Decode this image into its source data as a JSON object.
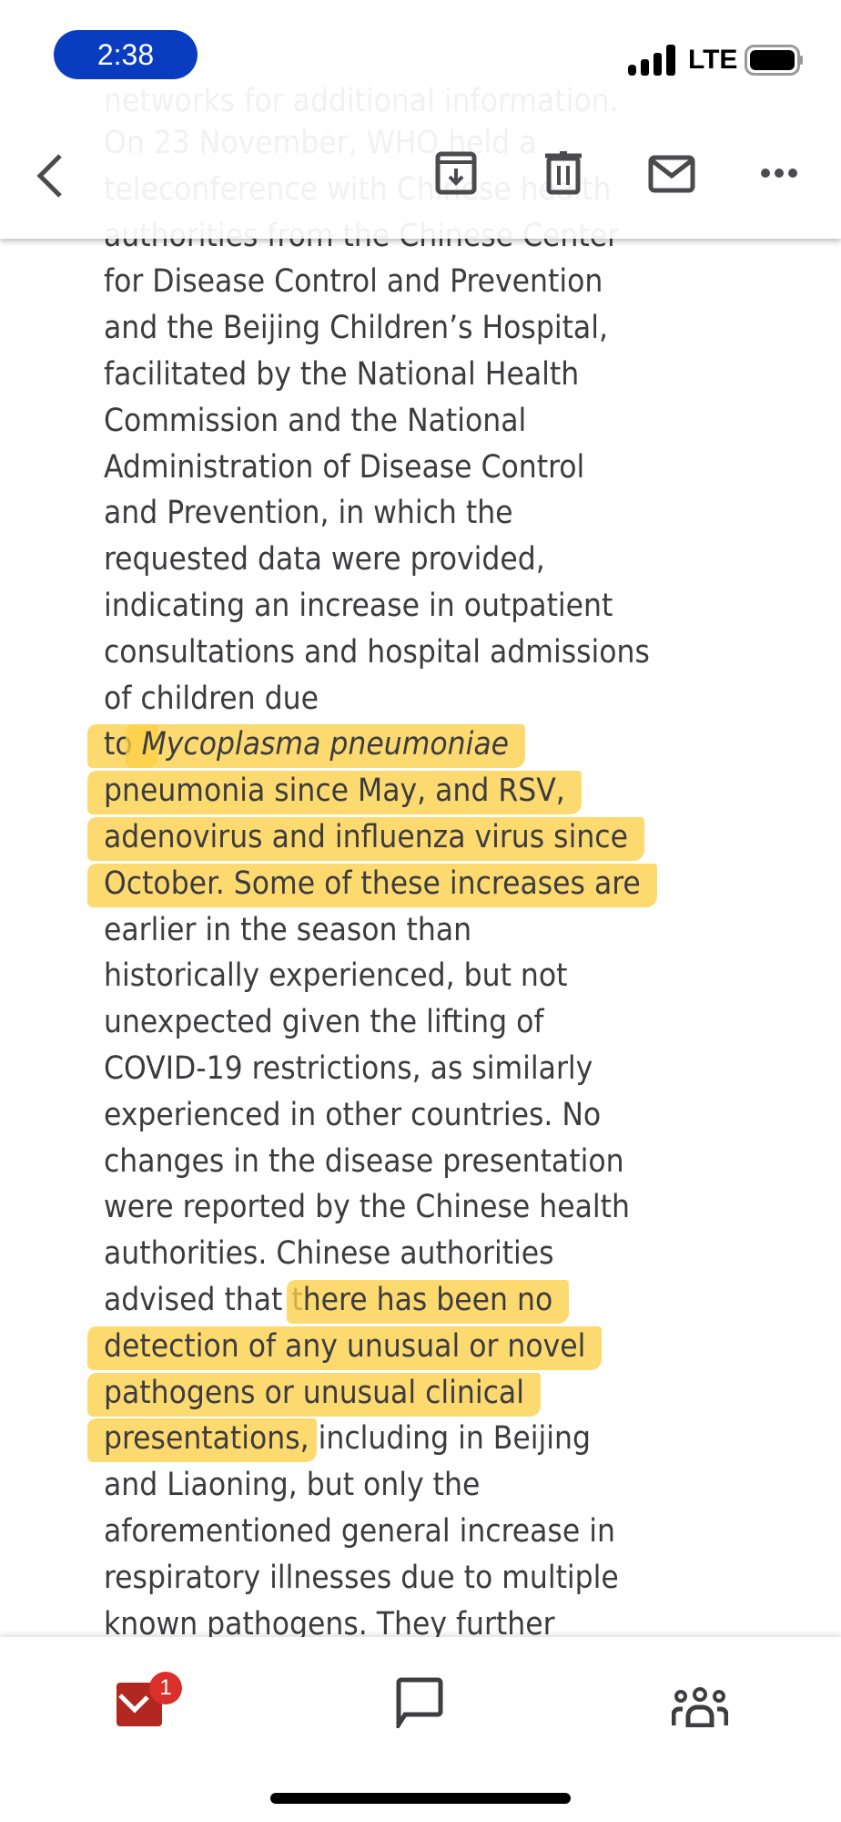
{
  "status_bar": {
    "time": "2:38",
    "network": "LTE",
    "battery_level": 0.9
  },
  "toolbar": {
    "icons": [
      "back-chevron-icon",
      "archive-icon",
      "trash-icon",
      "mail-icon",
      "more-icon"
    ]
  },
  "article": {
    "paragraphs": [
      [
        [
          {
            "t": "networks for additional information."
          }
        ]
      ],
      [
        [
          {
            "t": "On 23 November, WHO held a"
          }
        ],
        [
          {
            "t": "teleconference with Chinese health"
          }
        ],
        [
          {
            "t": "authorities from the Chinese Center"
          }
        ],
        [
          {
            "t": "for Disease Control and Prevention"
          }
        ],
        [
          {
            "t": "and the Beijing Children’s Hospital,"
          }
        ],
        [
          {
            "t": "facilitated by the National Health"
          }
        ],
        [
          {
            "t": "Commission and the National"
          }
        ],
        [
          {
            "t": "Administration of Disease Control"
          }
        ],
        [
          {
            "t": "and Prevention, in which the"
          }
        ],
        [
          {
            "t": "requested data were provided,"
          }
        ],
        [
          {
            "t": "indicating an increase in outpatient"
          }
        ],
        [
          {
            "t": "consultations and hospital admissions"
          }
        ],
        [
          {
            "t": "of children due"
          }
        ],
        [
          {
            "t": "to ",
            "hl": true
          },
          {
            "t": "Mycoplasma pneumoniae",
            "hl": true,
            "i": true
          }
        ],
        [
          {
            "t": "pneumonia since May, and RSV,",
            "hl": true
          }
        ],
        [
          {
            "t": "adenovirus and influenza virus since",
            "hl": true
          }
        ],
        [
          {
            "t": "October. Some of these increases are",
            "hl": true
          }
        ],
        [
          {
            "t": "earlier in the season than"
          }
        ],
        [
          {
            "t": "historically experienced, but not"
          }
        ],
        [
          {
            "t": "unexpected given the lifting of"
          }
        ],
        [
          {
            "t": "COVID-19 restrictions, as similarly"
          }
        ],
        [
          {
            "t": "experienced in other countries. No"
          }
        ],
        [
          {
            "t": "changes in the disease presentation"
          }
        ],
        [
          {
            "t": "were reported by the Chinese health"
          }
        ],
        [
          {
            "t": "authorities. Chinese authorities"
          }
        ],
        [
          {
            "t": "advised that t"
          },
          {
            "t": "here has been no",
            "hl": true
          }
        ],
        [
          {
            "t": "detection of any unusual or novel",
            "hl": true
          }
        ],
        [
          {
            "t": "pathogens or unusual clinical",
            "hl": true
          }
        ],
        [
          {
            "t": "presentations",
            "hl": true
          },
          {
            "t": ", including in Beijing"
          }
        ],
        [
          {
            "t": "and Liaoning, but only the"
          }
        ],
        [
          {
            "t": "aforementioned general increase in"
          }
        ],
        [
          {
            "t": "respiratory illnesses due to multiple"
          }
        ],
        [
          {
            "t": "known pathogens. They further"
          }
        ]
      ]
    ]
  },
  "bottom_nav": {
    "items": [
      {
        "icon": "mail-icon",
        "badge": "1",
        "active": true
      },
      {
        "icon": "chat-icon"
      },
      {
        "icon": "people-icon"
      }
    ]
  },
  "colors": {
    "highlight": "#fdd046",
    "status_pill": "#0a3cc0",
    "mail_active": "#b22720",
    "badge": "#d9302a",
    "icon": "#4a4a4f"
  }
}
